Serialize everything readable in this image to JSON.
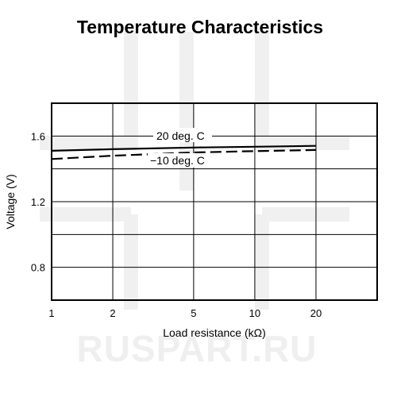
{
  "chart_data": {
    "type": "line",
    "title": "Temperature Characteristics",
    "xlabel": "Load resistance (kΩ)",
    "ylabel": "Voltage (V)",
    "x_scale": "log",
    "xlim": [
      1,
      40
    ],
    "ylim": [
      0.6,
      1.8
    ],
    "x_ticks": [
      1,
      2,
      5,
      10,
      20
    ],
    "x_tick_labels": [
      "1",
      "2",
      "5",
      "10",
      "20"
    ],
    "x_grid": [
      1,
      2,
      5,
      10,
      20,
      40
    ],
    "y_ticks": [
      0.8,
      1.2,
      1.6
    ],
    "y_tick_labels": [
      "0.8",
      "1.2",
      "1.6"
    ],
    "y_grid": [
      0.6,
      0.8,
      1.0,
      1.2,
      1.4,
      1.6,
      1.8
    ],
    "grid": true,
    "series": [
      {
        "name": "20 deg. C",
        "style": "solid",
        "x": [
          1,
          2,
          5,
          10,
          20
        ],
        "y": [
          1.51,
          1.52,
          1.53,
          1.535,
          1.54
        ]
      },
      {
        "name": "−10 deg. C",
        "style": "dashed",
        "x": [
          1,
          2,
          5,
          10,
          20
        ],
        "y": [
          1.46,
          1.48,
          1.5,
          1.508,
          1.515
        ]
      }
    ]
  },
  "watermark": {
    "text": "RUSPART.RU"
  }
}
